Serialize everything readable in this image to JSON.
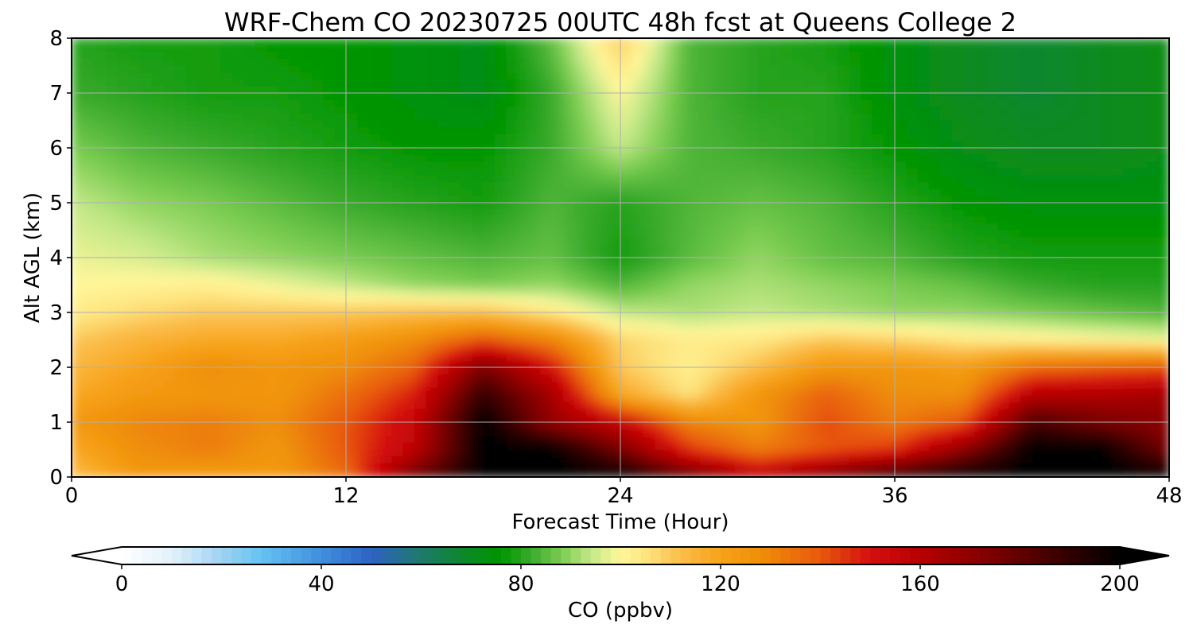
{
  "chart_data": {
    "type": "heatmap",
    "title": "WRF-Chem CO  20230725 00UTC 48h fcst at Queens College 2",
    "xlabel": "Forecast Time (Hour)",
    "ylabel": "Alt AGL (km)",
    "xlim": [
      0,
      48
    ],
    "ylim": [
      0,
      8
    ],
    "xticks": [
      0,
      12,
      24,
      36,
      48
    ],
    "yticks": [
      0,
      1,
      2,
      3,
      4,
      5,
      6,
      7,
      8
    ],
    "grid": true,
    "colorbar": {
      "label": "CO  (ppbv)",
      "range": [
        0,
        200
      ],
      "ticks": [
        0,
        40,
        80,
        120,
        160,
        200
      ],
      "extend": "both",
      "orientation": "horizontal",
      "colors": [
        [
          0,
          "#ffffff"
        ],
        [
          10,
          "#e3f1fb"
        ],
        [
          20,
          "#9ed2f2"
        ],
        [
          28,
          "#66c2f2"
        ],
        [
          40,
          "#3f8fdc"
        ],
        [
          50,
          "#2e62c4"
        ],
        [
          60,
          "#1e7a6a"
        ],
        [
          70,
          "#0a8a20"
        ],
        [
          76,
          "#009500"
        ],
        [
          82,
          "#3aaa2c"
        ],
        [
          88,
          "#7acc50"
        ],
        [
          94,
          "#c4e888"
        ],
        [
          100,
          "#fff79a"
        ],
        [
          106,
          "#fde07a"
        ],
        [
          112,
          "#fbbd4a"
        ],
        [
          120,
          "#f7a21a"
        ],
        [
          128,
          "#ef8f08"
        ],
        [
          140,
          "#e8580c"
        ],
        [
          150,
          "#d40f0f"
        ],
        [
          160,
          "#b80000"
        ],
        [
          175,
          "#7a0000"
        ],
        [
          188,
          "#3a0000"
        ],
        [
          200,
          "#000000"
        ]
      ]
    },
    "hours": [
      0,
      3,
      6,
      9,
      12,
      15,
      18,
      21,
      24,
      27,
      30,
      33,
      36,
      39,
      42,
      45,
      48
    ],
    "altitudes_km": [
      0,
      0.5,
      1,
      1.5,
      2,
      2.5,
      3,
      3.5,
      4,
      5,
      6,
      7,
      8
    ],
    "values_ppbv": [
      [
        112,
        124,
        122,
        124,
        135,
        178,
        200,
        200,
        200,
        180,
        160,
        175,
        192,
        200,
        200,
        200,
        200
      ],
      [
        118,
        128,
        132,
        125,
        140,
        158,
        200,
        200,
        175,
        145,
        132,
        140,
        145,
        170,
        200,
        200,
        175
      ],
      [
        124,
        130,
        132,
        128,
        140,
        155,
        200,
        168,
        155,
        130,
        125,
        142,
        132,
        140,
        185,
        175,
        170
      ],
      [
        118,
        124,
        125,
        125,
        135,
        148,
        190,
        165,
        118,
        105,
        125,
        138,
        128,
        128,
        160,
        162,
        165
      ],
      [
        114,
        120,
        128,
        125,
        128,
        138,
        175,
        150,
        110,
        102,
        112,
        125,
        125,
        122,
        135,
        138,
        140
      ],
      [
        110,
        115,
        118,
        118,
        122,
        128,
        140,
        130,
        108,
        103,
        104,
        110,
        108,
        104,
        102,
        100,
        98
      ],
      [
        103,
        107,
        110,
        110,
        110,
        112,
        112,
        104,
        94,
        92,
        94,
        92,
        90,
        90,
        88,
        86,
        84
      ],
      [
        100,
        101,
        102,
        98,
        94,
        90,
        88,
        90,
        84,
        90,
        92,
        90,
        88,
        86,
        82,
        80,
        80
      ],
      [
        98,
        96,
        92,
        90,
        88,
        86,
        84,
        86,
        78,
        85,
        90,
        86,
        84,
        80,
        78,
        78,
        78
      ],
      [
        94,
        90,
        88,
        85,
        82,
        80,
        78,
        84,
        80,
        84,
        86,
        84,
        80,
        76,
        74,
        74,
        74
      ],
      [
        88,
        84,
        82,
        80,
        78,
        76,
        76,
        82,
        94,
        84,
        82,
        80,
        76,
        72,
        70,
        70,
        72
      ],
      [
        82,
        80,
        78,
        78,
        76,
        74,
        72,
        82,
        100,
        84,
        80,
        80,
        74,
        70,
        68,
        70,
        72
      ],
      [
        80,
        78,
        78,
        76,
        76,
        74,
        72,
        86,
        110,
        84,
        80,
        78,
        74,
        70,
        68,
        70,
        72
      ]
    ]
  }
}
